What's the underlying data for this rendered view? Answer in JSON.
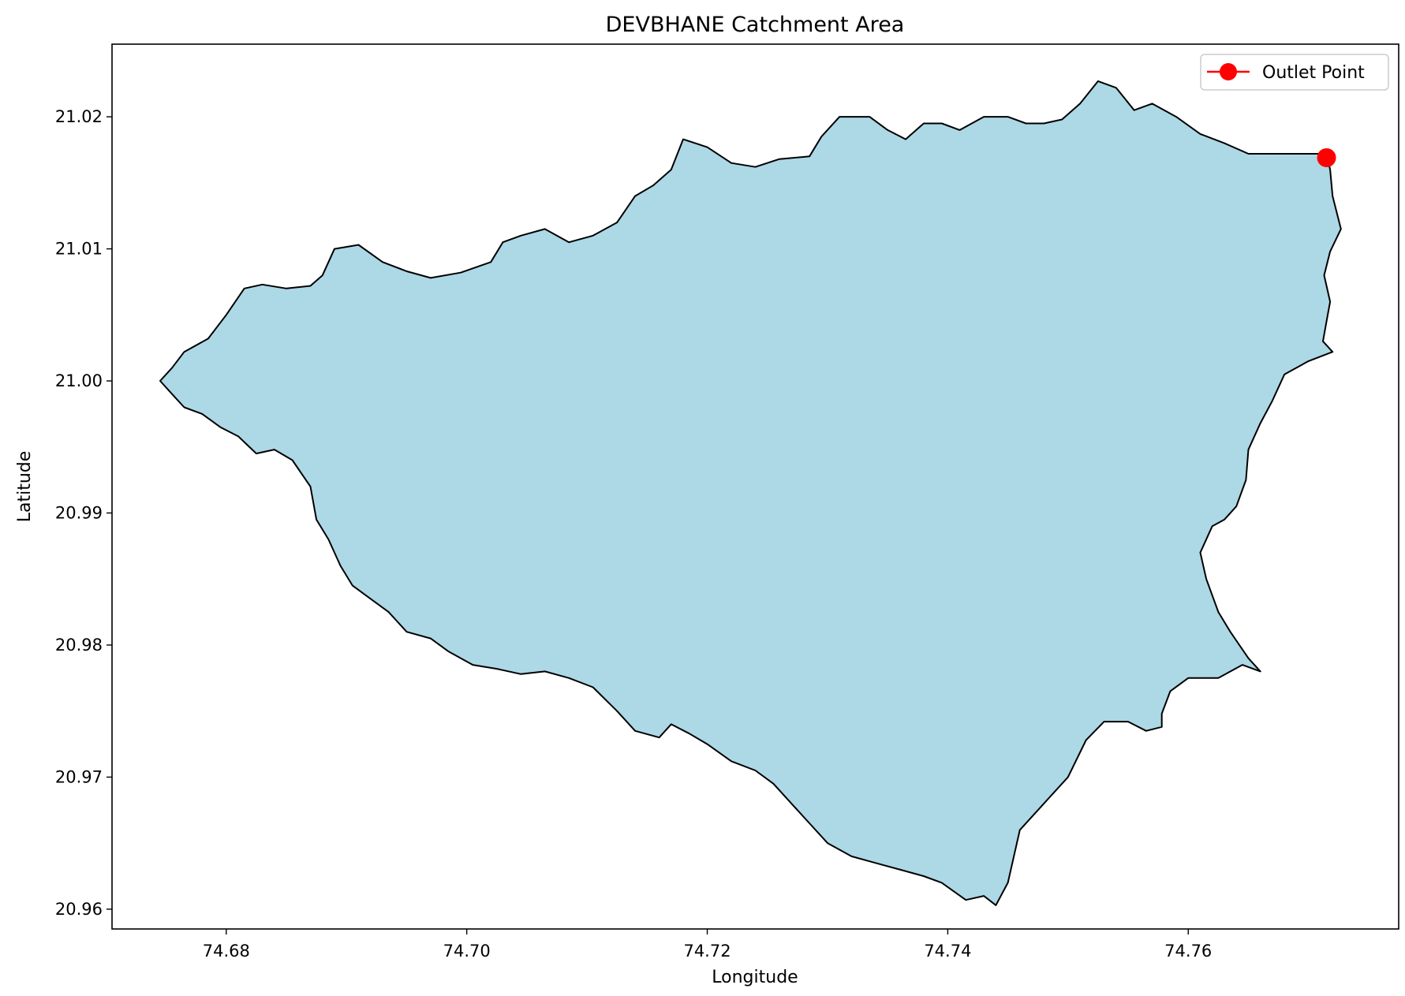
{
  "chart_data": {
    "type": "map",
    "title": "DEVBHANE Catchment Area",
    "xlabel": "Longitude",
    "ylabel": "Latitude",
    "xlim": [
      74.6705,
      74.7775
    ],
    "ylim": [
      20.9585,
      21.0255
    ],
    "x_ticks": [
      74.68,
      74.7,
      74.72,
      74.74,
      74.76
    ],
    "x_tick_labels": [
      "74.68",
      "74.70",
      "74.72",
      "74.74",
      "74.76"
    ],
    "y_ticks": [
      20.96,
      20.97,
      20.98,
      20.99,
      21.0,
      21.01,
      21.02
    ],
    "y_tick_labels": [
      "20.96",
      "20.97",
      "20.98",
      "20.99",
      "21.00",
      "21.01",
      "21.02"
    ],
    "grid": false,
    "legend": {
      "placement": "top-right",
      "entries": [
        "Outlet Point"
      ]
    },
    "catchment": {
      "fill_color": "#add8e6",
      "edge_color": "#000000",
      "boundary": [
        [
          74.6755,
          21.001
        ],
        [
          74.6765,
          21.0022
        ],
        [
          74.6785,
          21.0032
        ],
        [
          74.68,
          21.005
        ],
        [
          74.6815,
          21.007
        ],
        [
          74.683,
          21.0073
        ],
        [
          74.685,
          21.007
        ],
        [
          74.687,
          21.0072
        ],
        [
          74.688,
          21.008
        ],
        [
          74.689,
          21.01
        ],
        [
          74.691,
          21.0103
        ],
        [
          74.693,
          21.009
        ],
        [
          74.695,
          21.0083
        ],
        [
          74.697,
          21.0078
        ],
        [
          74.6995,
          21.0082
        ],
        [
          74.702,
          21.009
        ],
        [
          74.703,
          21.0105
        ],
        [
          74.7045,
          21.011
        ],
        [
          74.7065,
          21.0115
        ],
        [
          74.7085,
          21.0105
        ],
        [
          74.7105,
          21.011
        ],
        [
          74.7125,
          21.012
        ],
        [
          74.714,
          21.014
        ],
        [
          74.7155,
          21.0148
        ],
        [
          74.717,
          21.016
        ],
        [
          74.718,
          21.0183
        ],
        [
          74.72,
          21.0177
        ],
        [
          74.722,
          21.0165
        ],
        [
          74.724,
          21.0162
        ],
        [
          74.726,
          21.0168
        ],
        [
          74.7285,
          21.017
        ],
        [
          74.7295,
          21.0185
        ],
        [
          74.731,
          21.02
        ],
        [
          74.7335,
          21.02
        ],
        [
          74.735,
          21.019
        ],
        [
          74.7365,
          21.0183
        ],
        [
          74.738,
          21.0195
        ],
        [
          74.7395,
          21.0195
        ],
        [
          74.741,
          21.019
        ],
        [
          74.743,
          21.02
        ],
        [
          74.745,
          21.02
        ],
        [
          74.7465,
          21.0195
        ],
        [
          74.748,
          21.0195
        ],
        [
          74.7495,
          21.0198
        ],
        [
          74.751,
          21.021
        ],
        [
          74.7525,
          21.0227
        ],
        [
          74.754,
          21.0222
        ],
        [
          74.7555,
          21.0205
        ],
        [
          74.757,
          21.021
        ],
        [
          74.759,
          21.02
        ],
        [
          74.761,
          21.0187
        ],
        [
          74.763,
          21.018
        ],
        [
          74.765,
          21.0172
        ],
        [
          74.768,
          21.0172
        ],
        [
          74.7715,
          21.0172
        ],
        [
          74.7718,
          21.016
        ],
        [
          74.772,
          21.014
        ],
        [
          74.7727,
          21.0115
        ],
        [
          74.7718,
          21.0098
        ],
        [
          74.7713,
          21.008
        ],
        [
          74.7718,
          21.006
        ],
        [
          74.7715,
          21.0045
        ],
        [
          74.7712,
          21.003
        ],
        [
          74.772,
          21.0022
        ],
        [
          74.77,
          21.0015
        ],
        [
          74.768,
          21.0005
        ],
        [
          74.767,
          20.9985
        ],
        [
          74.766,
          20.9968
        ],
        [
          74.765,
          20.9948
        ],
        [
          74.7648,
          20.9925
        ],
        [
          74.764,
          20.9905
        ],
        [
          74.763,
          20.9895
        ],
        [
          74.762,
          20.989
        ],
        [
          74.761,
          20.987
        ],
        [
          74.7615,
          20.985
        ],
        [
          74.7625,
          20.9825
        ],
        [
          74.7635,
          20.981
        ],
        [
          74.765,
          20.979
        ],
        [
          74.766,
          20.978
        ],
        [
          74.7645,
          20.9785
        ],
        [
          74.7625,
          20.9775
        ],
        [
          74.76,
          20.9775
        ],
        [
          74.7585,
          20.9765
        ],
        [
          74.7578,
          20.9748
        ],
        [
          74.7578,
          20.9738
        ],
        [
          74.7565,
          20.9735
        ],
        [
          74.755,
          20.9742
        ],
        [
          74.753,
          20.9742
        ],
        [
          74.7515,
          20.9728
        ],
        [
          74.75,
          20.97
        ],
        [
          74.748,
          20.968
        ],
        [
          74.746,
          20.966
        ],
        [
          74.7455,
          20.964
        ],
        [
          74.745,
          20.962
        ],
        [
          74.744,
          20.9603
        ],
        [
          74.743,
          20.961
        ],
        [
          74.7415,
          20.9607
        ],
        [
          74.7395,
          20.962
        ],
        [
          74.738,
          20.9625
        ],
        [
          74.736,
          20.963
        ],
        [
          74.734,
          20.9635
        ],
        [
          74.732,
          20.964
        ],
        [
          74.73,
          20.965
        ],
        [
          74.7285,
          20.9665
        ],
        [
          74.727,
          20.968
        ],
        [
          74.7255,
          20.9695
        ],
        [
          74.724,
          20.9705
        ],
        [
          74.722,
          20.9712
        ],
        [
          74.72,
          20.9725
        ],
        [
          74.7185,
          20.9733
        ],
        [
          74.717,
          20.974
        ],
        [
          74.716,
          20.973
        ],
        [
          74.714,
          20.9735
        ],
        [
          74.7125,
          20.975
        ],
        [
          74.7105,
          20.9768
        ],
        [
          74.7085,
          20.9775
        ],
        [
          74.7065,
          20.978
        ],
        [
          74.7045,
          20.9778
        ],
        [
          74.7025,
          20.9782
        ],
        [
          74.7005,
          20.9785
        ],
        [
          74.6985,
          20.9795
        ],
        [
          74.697,
          20.9805
        ],
        [
          74.695,
          20.981
        ],
        [
          74.6935,
          20.9825
        ],
        [
          74.692,
          20.9835
        ],
        [
          74.6905,
          20.9845
        ],
        [
          74.6895,
          20.986
        ],
        [
          74.6885,
          20.988
        ],
        [
          74.6875,
          20.9895
        ],
        [
          74.687,
          20.992
        ],
        [
          74.6855,
          20.994
        ],
        [
          74.684,
          20.9948
        ],
        [
          74.6825,
          20.9945
        ],
        [
          74.681,
          20.9958
        ],
        [
          74.6795,
          20.9965
        ],
        [
          74.678,
          20.9975
        ],
        [
          74.6765,
          20.998
        ],
        [
          74.6755,
          20.999
        ],
        [
          74.6745,
          21.0
        ],
        [
          74.6755,
          21.001
        ]
      ]
    },
    "outlet_point": {
      "name": "Outlet Point",
      "lon": 74.7715,
      "lat": 21.0169,
      "color": "#ff0000"
    }
  }
}
